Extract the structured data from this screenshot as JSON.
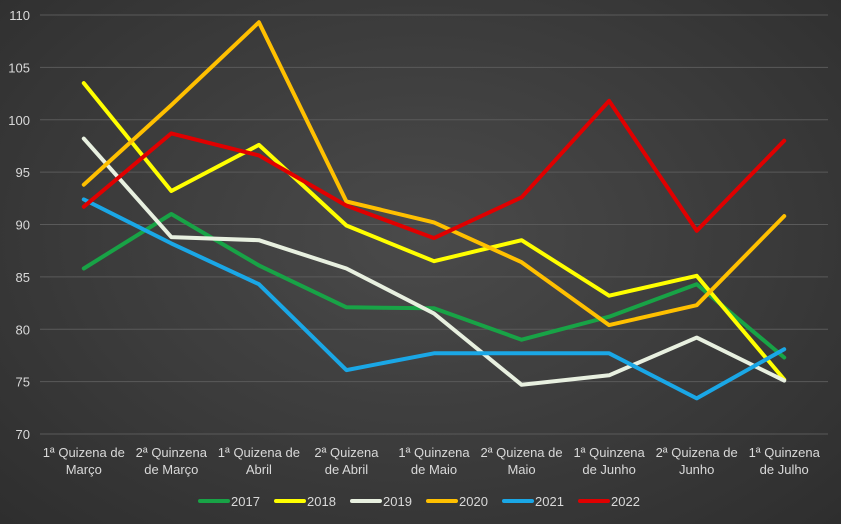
{
  "chart_data": {
    "type": "line",
    "categories": [
      [
        "1ª Quizena de",
        "Março"
      ],
      [
        "2ª Quinzena",
        "de Março"
      ],
      [
        "1ª Quizena de",
        "Abril"
      ],
      [
        "2ª Quizena",
        "de Abril"
      ],
      [
        "1ª Quinzena",
        "de Maio"
      ],
      [
        "2ª Quizena de",
        "Maio"
      ],
      [
        "1ª Quinzena",
        "de Junho"
      ],
      [
        "2ª Quizena de",
        "Junho"
      ],
      [
        "1ª Quinzena",
        "de Julho"
      ]
    ],
    "ylim": [
      70,
      110
    ],
    "yticks": [
      70,
      75,
      80,
      85,
      90,
      95,
      100,
      105,
      110
    ],
    "grid": true,
    "legend_position": "bottom",
    "series": [
      {
        "name": "2017",
        "color": "#18a346",
        "values": [
          85.8,
          91.0,
          86.1,
          82.1,
          82.0,
          79.0,
          81.2,
          84.3,
          77.3
        ]
      },
      {
        "name": "2018",
        "color": "#ffff00",
        "values": [
          103.5,
          93.2,
          97.6,
          89.9,
          86.5,
          88.5,
          83.2,
          85.1,
          75.2
        ]
      },
      {
        "name": "2019",
        "color": "#e8f0e0",
        "values": [
          98.2,
          88.8,
          88.5,
          85.8,
          81.5,
          74.7,
          75.6,
          79.2,
          75.1
        ]
      },
      {
        "name": "2020",
        "color": "#ffc000",
        "values": [
          93.8,
          101.4,
          109.3,
          92.2,
          90.2,
          86.4,
          80.4,
          82.3,
          90.8
        ]
      },
      {
        "name": "2021",
        "color": "#1aa7e6",
        "values": [
          92.4,
          88.2,
          84.3,
          76.1,
          77.7,
          77.7,
          77.7,
          73.4,
          78.1
        ]
      },
      {
        "name": "2022",
        "color": "#e00000",
        "values": [
          91.7,
          98.7,
          96.6,
          91.8,
          88.7,
          92.6,
          101.8,
          89.4,
          98.0
        ]
      }
    ]
  }
}
